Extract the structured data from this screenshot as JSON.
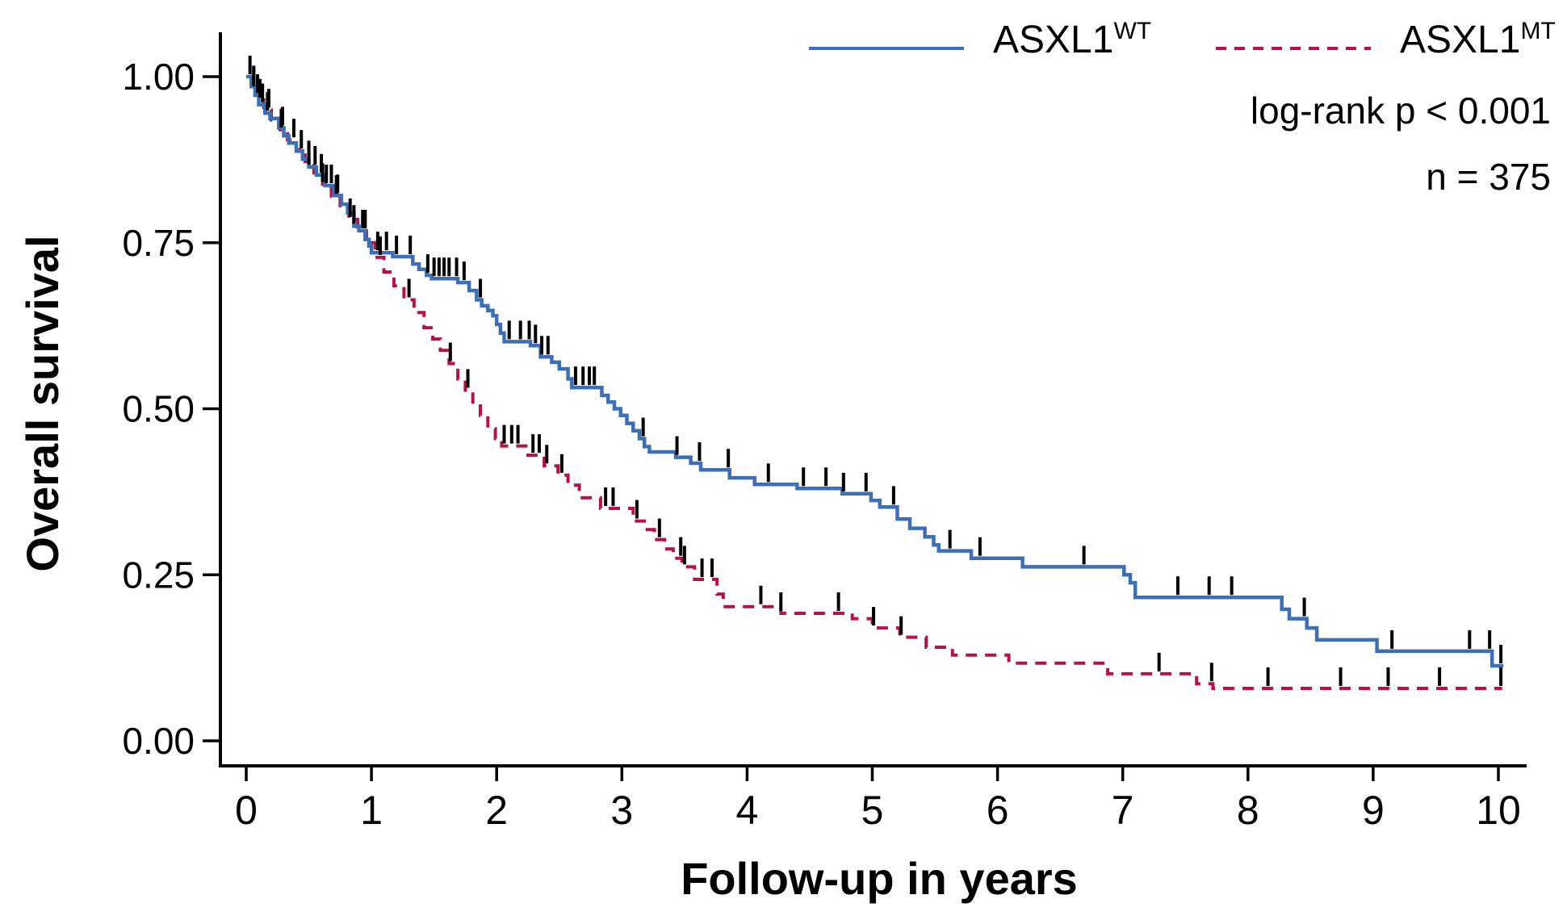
{
  "figure": {
    "y_axis_title": "Overall survival",
    "x_axis_title": "Follow-up in years",
    "annotations": {
      "logrank": "log-rank p < 0.001",
      "n": "n = 375"
    },
    "legend": [
      {
        "base": "ASXL1",
        "sup": "WT"
      },
      {
        "base": "ASXL1",
        "sup": "MT"
      }
    ]
  },
  "chart_data": {
    "type": "line",
    "subtype": "kaplan-meier-step",
    "title": "",
    "xlabel": "Follow-up in years",
    "ylabel": "Overall survival",
    "xlim": [
      0,
      10
    ],
    "ylim": [
      0.0,
      1.0
    ],
    "grid": false,
    "legend_position": "top-right",
    "x_ticks": [
      0,
      1,
      2,
      3,
      4,
      5,
      6,
      7,
      8,
      9,
      10
    ],
    "y_ticks": [
      {
        "v": 0.0,
        "label": "0.00"
      },
      {
        "v": 0.25,
        "label": "0.25"
      },
      {
        "v": 0.5,
        "label": "0.50"
      },
      {
        "v": 0.75,
        "label": "0.75"
      },
      {
        "v": 1.0,
        "label": "1.00"
      }
    ],
    "annotations": [
      "log-rank p < 0.001",
      "n = 375"
    ],
    "axis_color": "#000000",
    "censor_color": "#000000",
    "series": [
      {
        "name": "ASXL1^WT",
        "color": "#3E6FB5",
        "style": "solid",
        "points": [
          [
            0,
            1.0
          ],
          [
            0.04,
            0.985
          ],
          [
            0.07,
            0.972
          ],
          [
            0.1,
            0.958
          ],
          [
            0.15,
            0.945
          ],
          [
            0.19,
            0.937
          ],
          [
            0.26,
            0.923
          ],
          [
            0.3,
            0.911
          ],
          [
            0.34,
            0.9
          ],
          [
            0.4,
            0.888
          ],
          [
            0.45,
            0.876
          ],
          [
            0.5,
            0.864
          ],
          [
            0.56,
            0.852
          ],
          [
            0.63,
            0.836
          ],
          [
            0.7,
            0.821
          ],
          [
            0.76,
            0.808
          ],
          [
            0.81,
            0.795
          ],
          [
            0.86,
            0.775
          ],
          [
            0.9,
            0.768
          ],
          [
            0.95,
            0.755
          ],
          [
            0.98,
            0.745
          ],
          [
            1.0,
            0.735
          ],
          [
            1.17,
            0.729
          ],
          [
            1.33,
            0.718
          ],
          [
            1.38,
            0.71
          ],
          [
            1.44,
            0.701
          ],
          [
            1.48,
            0.696
          ],
          [
            1.69,
            0.69
          ],
          [
            1.78,
            0.678
          ],
          [
            1.84,
            0.664
          ],
          [
            1.88,
            0.655
          ],
          [
            1.93,
            0.648
          ],
          [
            1.97,
            0.64
          ],
          [
            2.0,
            0.627
          ],
          [
            2.03,
            0.614
          ],
          [
            2.06,
            0.601
          ],
          [
            2.27,
            0.595
          ],
          [
            2.35,
            0.578
          ],
          [
            2.44,
            0.57
          ],
          [
            2.5,
            0.56
          ],
          [
            2.57,
            0.545
          ],
          [
            2.6,
            0.532
          ],
          [
            2.84,
            0.52
          ],
          [
            2.89,
            0.51
          ],
          [
            2.94,
            0.5
          ],
          [
            2.99,
            0.49
          ],
          [
            3.04,
            0.478
          ],
          [
            3.09,
            0.467
          ],
          [
            3.14,
            0.455
          ],
          [
            3.18,
            0.443
          ],
          [
            3.22,
            0.435
          ],
          [
            3.43,
            0.427
          ],
          [
            3.55,
            0.418
          ],
          [
            3.63,
            0.408
          ],
          [
            3.86,
            0.396
          ],
          [
            4.06,
            0.386
          ],
          [
            4.4,
            0.38
          ],
          [
            4.76,
            0.372
          ],
          [
            4.99,
            0.362
          ],
          [
            5.06,
            0.352
          ],
          [
            5.2,
            0.334
          ],
          [
            5.3,
            0.32
          ],
          [
            5.42,
            0.307
          ],
          [
            5.49,
            0.295
          ],
          [
            5.53,
            0.286
          ],
          [
            5.79,
            0.275
          ],
          [
            6.2,
            0.262
          ],
          [
            7.01,
            0.25
          ],
          [
            7.06,
            0.238
          ],
          [
            7.1,
            0.216
          ],
          [
            8.27,
            0.198
          ],
          [
            8.33,
            0.184
          ],
          [
            8.47,
            0.17
          ],
          [
            8.55,
            0.152
          ],
          [
            9.03,
            0.135
          ],
          [
            9.95,
            0.113
          ],
          [
            10.04,
            0.113
          ]
        ],
        "censor_times": [
          0.03,
          0.06,
          0.09,
          0.13,
          0.17,
          0.29,
          0.44,
          0.5,
          0.55,
          0.6,
          0.64,
          0.68,
          0.73,
          0.86,
          0.93,
          1.05,
          1.12,
          1.2,
          1.31,
          1.45,
          1.5,
          1.54,
          1.58,
          1.62,
          1.68,
          1.74,
          1.87,
          2.1,
          2.19,
          2.26,
          2.31,
          2.36,
          2.41,
          2.63,
          2.69,
          2.74,
          2.78,
          3.17,
          3.44,
          3.62,
          3.85,
          4.17,
          4.45,
          4.63,
          4.77,
          4.95,
          5.17,
          5.62,
          5.86,
          6.69,
          7.44,
          7.69,
          7.87,
          8.45,
          9.15,
          9.77,
          9.93,
          10.02
        ]
      },
      {
        "name": "ASXL1^MT",
        "color": "#B6124A",
        "style": "dashed",
        "points": [
          [
            0,
            1.0
          ],
          [
            0.05,
            0.982
          ],
          [
            0.09,
            0.965
          ],
          [
            0.14,
            0.95
          ],
          [
            0.2,
            0.935
          ],
          [
            0.27,
            0.92
          ],
          [
            0.33,
            0.905
          ],
          [
            0.4,
            0.89
          ],
          [
            0.47,
            0.872
          ],
          [
            0.54,
            0.855
          ],
          [
            0.61,
            0.838
          ],
          [
            0.68,
            0.82
          ],
          [
            0.75,
            0.802
          ],
          [
            0.82,
            0.785
          ],
          [
            0.89,
            0.768
          ],
          [
            0.96,
            0.75
          ],
          [
            1.03,
            0.728
          ],
          [
            1.1,
            0.706
          ],
          [
            1.18,
            0.685
          ],
          [
            1.26,
            0.664
          ],
          [
            1.34,
            0.645
          ],
          [
            1.42,
            0.622
          ],
          [
            1.49,
            0.605
          ],
          [
            1.55,
            0.588
          ],
          [
            1.62,
            0.568
          ],
          [
            1.69,
            0.545
          ],
          [
            1.75,
            0.528
          ],
          [
            1.81,
            0.51
          ],
          [
            1.87,
            0.49
          ],
          [
            1.93,
            0.47
          ],
          [
            1.99,
            0.455
          ],
          [
            2.04,
            0.444
          ],
          [
            2.25,
            0.43
          ],
          [
            2.38,
            0.414
          ],
          [
            2.49,
            0.4
          ],
          [
            2.57,
            0.385
          ],
          [
            2.66,
            0.366
          ],
          [
            2.83,
            0.35
          ],
          [
            3.09,
            0.331
          ],
          [
            3.18,
            0.318
          ],
          [
            3.26,
            0.303
          ],
          [
            3.34,
            0.289
          ],
          [
            3.41,
            0.275
          ],
          [
            3.48,
            0.262
          ],
          [
            3.58,
            0.243
          ],
          [
            3.76,
            0.221
          ],
          [
            3.81,
            0.202
          ],
          [
            4.27,
            0.192
          ],
          [
            4.84,
            0.184
          ],
          [
            5.0,
            0.17
          ],
          [
            5.22,
            0.156
          ],
          [
            5.43,
            0.141
          ],
          [
            5.64,
            0.129
          ],
          [
            6.09,
            0.117
          ],
          [
            6.88,
            0.101
          ],
          [
            7.59,
            0.086
          ],
          [
            7.72,
            0.079
          ],
          [
            10.03,
            0.079
          ]
        ],
        "censor_times": [
          0.06,
          0.11,
          0.18,
          0.28,
          0.38,
          0.5,
          0.61,
          0.72,
          0.83,
          0.95,
          1.07,
          1.3,
          1.63,
          1.77,
          2.06,
          2.12,
          2.17,
          2.29,
          2.34,
          2.4,
          2.52,
          2.87,
          2.93,
          3.12,
          3.3,
          3.47,
          3.5,
          3.64,
          3.72,
          4.11,
          4.27,
          4.73,
          5.01,
          5.23,
          7.29,
          7.71,
          8.16,
          8.74,
          9.12,
          9.53,
          10.02
        ]
      }
    ]
  }
}
